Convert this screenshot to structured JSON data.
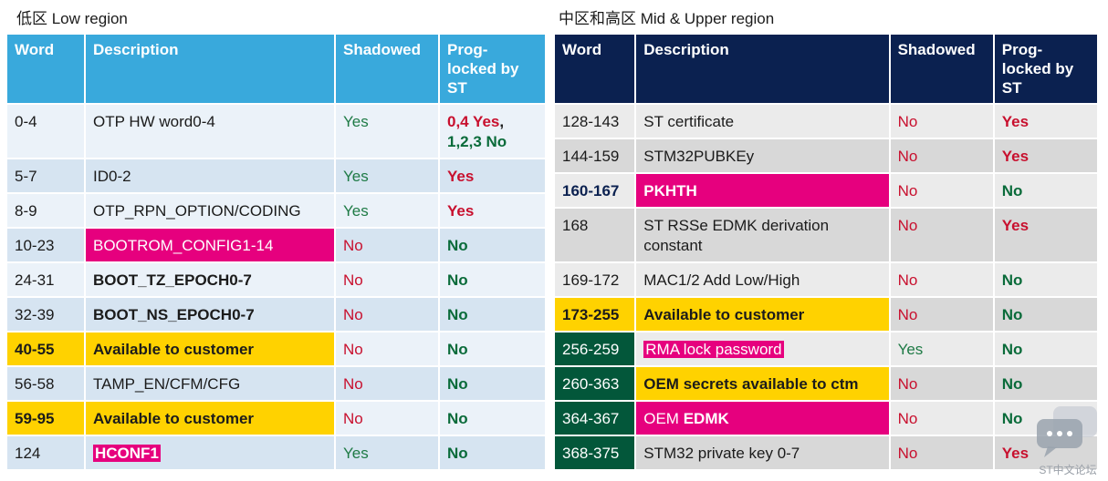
{
  "left": {
    "title": "低区 Low region",
    "headers": [
      "Word",
      "Description",
      "Shadowed",
      "Prog-\nlocked by\nST"
    ],
    "rows": [
      {
        "word": "0-4",
        "desc": "OTP HW word0-4",
        "shadowed": "Yes",
        "prog": [
          "0,4 Yes",
          ",",
          "1,2,3 No"
        ]
      },
      {
        "word": "5-7",
        "desc": "ID0-2",
        "shadowed": "Yes",
        "prog": "Yes"
      },
      {
        "word": "8-9",
        "desc": "OTP_RPN_OPTION/CODING",
        "shadowed": "Yes",
        "prog": "Yes"
      },
      {
        "word": "10-23",
        "desc": "BOOTROM_CONFIG1-14",
        "shadowed": "No",
        "prog": "No"
      },
      {
        "word": "24-31",
        "desc": "BOOT_TZ_EPOCH0-7",
        "shadowed": "No",
        "prog": "No"
      },
      {
        "word": "32-39",
        "desc": "BOOT_NS_EPOCH0-7",
        "shadowed": "No",
        "prog": "No"
      },
      {
        "word": "40-55",
        "desc": "Available to customer",
        "shadowed": "No",
        "prog": "No"
      },
      {
        "word": "56-58",
        "desc": "TAMP_EN/CFM/CFG",
        "shadowed": "No",
        "prog": "No"
      },
      {
        "word": "59-95",
        "desc": "Available to customer",
        "shadowed": "No",
        "prog": "No"
      },
      {
        "word": "124",
        "desc": "HCONF1",
        "shadowed": "Yes",
        "prog": "No"
      }
    ]
  },
  "right": {
    "title": "中区和高区 Mid & Upper region",
    "headers": [
      "Word",
      "Description",
      "Shadowed",
      "Prog-\nlocked by\nST"
    ],
    "rows": [
      {
        "word": "128-143",
        "desc": "ST certificate",
        "shadowed": "No",
        "prog": "Yes"
      },
      {
        "word": "144-159",
        "desc": "STM32PUBKEy",
        "shadowed": "No",
        "prog": "Yes"
      },
      {
        "word": "160-167",
        "desc": "PKHTH",
        "shadowed": "No",
        "prog": "No"
      },
      {
        "word": "168",
        "desc": "ST RSSe EDMK derivation constant",
        "shadowed": "No",
        "prog": "Yes"
      },
      {
        "word": "169-172",
        "desc": "MAC1/2 Add Low/High",
        "shadowed": "No",
        "prog": "No"
      },
      {
        "word": "173-255",
        "desc": "Available to customer",
        "shadowed": "No",
        "prog": "No"
      },
      {
        "word": "256-259",
        "desc": "RMA lock password",
        "shadowed": "Yes",
        "prog": "No"
      },
      {
        "word": "260-363",
        "desc": "OEM secrets available to ctm",
        "shadowed": "No",
        "prog": "No"
      },
      {
        "word": "364-367",
        "desc": [
          "OEM ",
          "EDMK"
        ],
        "shadowed": "No",
        "prog": "No"
      },
      {
        "word": "368-375",
        "desc": "STM32 private key 0-7",
        "shadowed": "No",
        "prog": "Yes"
      }
    ]
  },
  "watermark": {
    "text": "ST中文论坛",
    "icon": "chat-bubbles-icon"
  },
  "colors": {
    "left_header": "#39a9dc",
    "right_header": "#0b2150",
    "pink": "#e6007e",
    "yellow": "#ffd200",
    "dark_green": "#03573a",
    "red": "#c8102e",
    "green": "#0a6b3a"
  }
}
